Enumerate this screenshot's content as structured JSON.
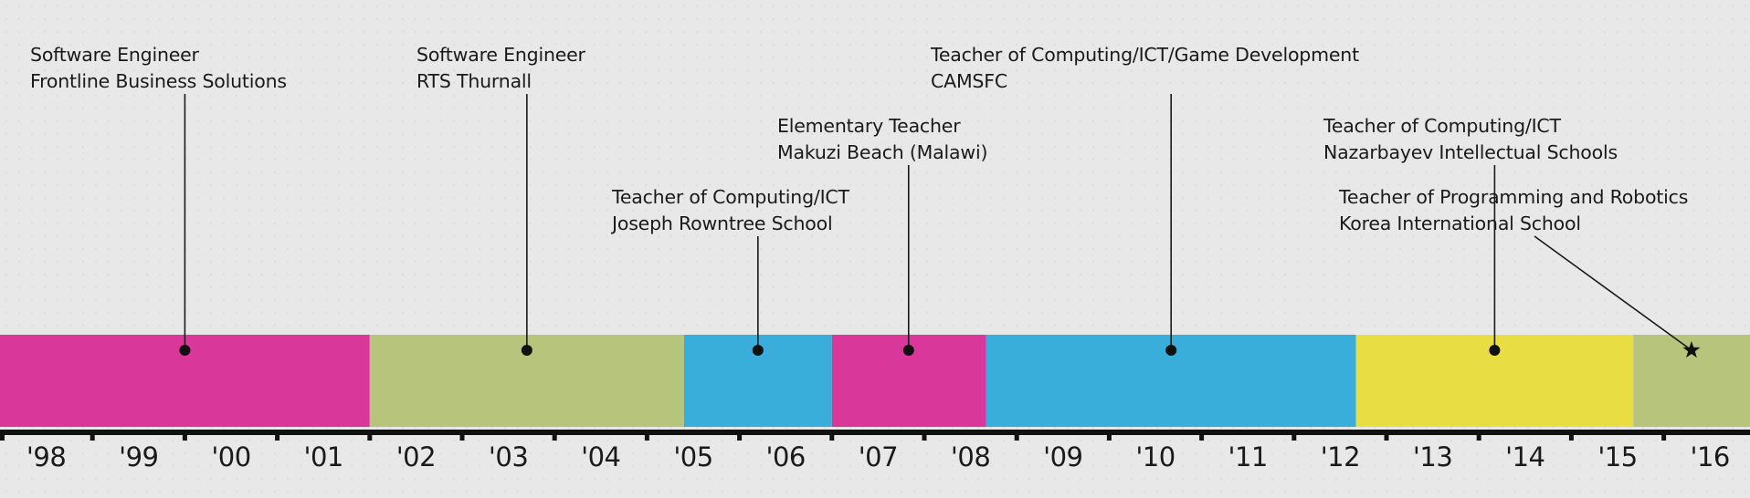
{
  "timeline": {
    "start_year": 1998,
    "end_year": 2017,
    "colors": {
      "magenta": "#d9379a",
      "olive": "#b6c47c",
      "blue": "#3aaedb",
      "yellow": "#e8de44",
      "axis": "#111111"
    },
    "years": [
      "'98",
      "'99",
      "'00",
      "'01",
      "'02",
      "'03",
      "'04",
      "'05",
      "'06",
      "'07",
      "'08",
      "'09",
      "'10",
      "'11",
      "'12",
      "'13",
      "'14",
      "'15",
      "'16"
    ],
    "jobs": [
      {
        "title": "Software Engineer",
        "org": "Frontline Business Solutions",
        "start": 1998.0,
        "end": 2002.0,
        "color": "magenta",
        "marker": "dot",
        "marker_at": 2000.0
      },
      {
        "title": "Software Engineer",
        "org": "RTS Thurnall",
        "start": 2002.0,
        "end": 2005.4,
        "color": "olive",
        "marker": "dot",
        "marker_at": 2003.7
      },
      {
        "title": "Teacher of Computing/ICT",
        "org": "Joseph Rowntree School",
        "start": 2005.4,
        "end": 2007.0,
        "color": "blue",
        "marker": "dot",
        "marker_at": 2006.2
      },
      {
        "title": "Elementary Teacher",
        "org": "Makuzi Beach (Malawi)",
        "start": 2007.0,
        "end": 2008.67,
        "color": "magenta",
        "marker": "dot",
        "marker_at": 2007.83
      },
      {
        "title": "Teacher of Computing/ICT/Game Development",
        "org": "CAMSFC",
        "start": 2008.67,
        "end": 2012.67,
        "color": "blue",
        "marker": "dot",
        "marker_at": 2010.67
      },
      {
        "title": "Teacher of Computing/ICT",
        "org": "Nazarbayev Intellectual Schools",
        "start": 2012.67,
        "end": 2015.67,
        "color": "yellow",
        "marker": "dot",
        "marker_at": 2014.17
      },
      {
        "title": "Teacher of Programming and Robotics",
        "org": "Korea International School",
        "start": 2015.67,
        "end": 2017.0,
        "color": "olive",
        "marker": "star",
        "marker_at": 2016.3
      }
    ]
  }
}
